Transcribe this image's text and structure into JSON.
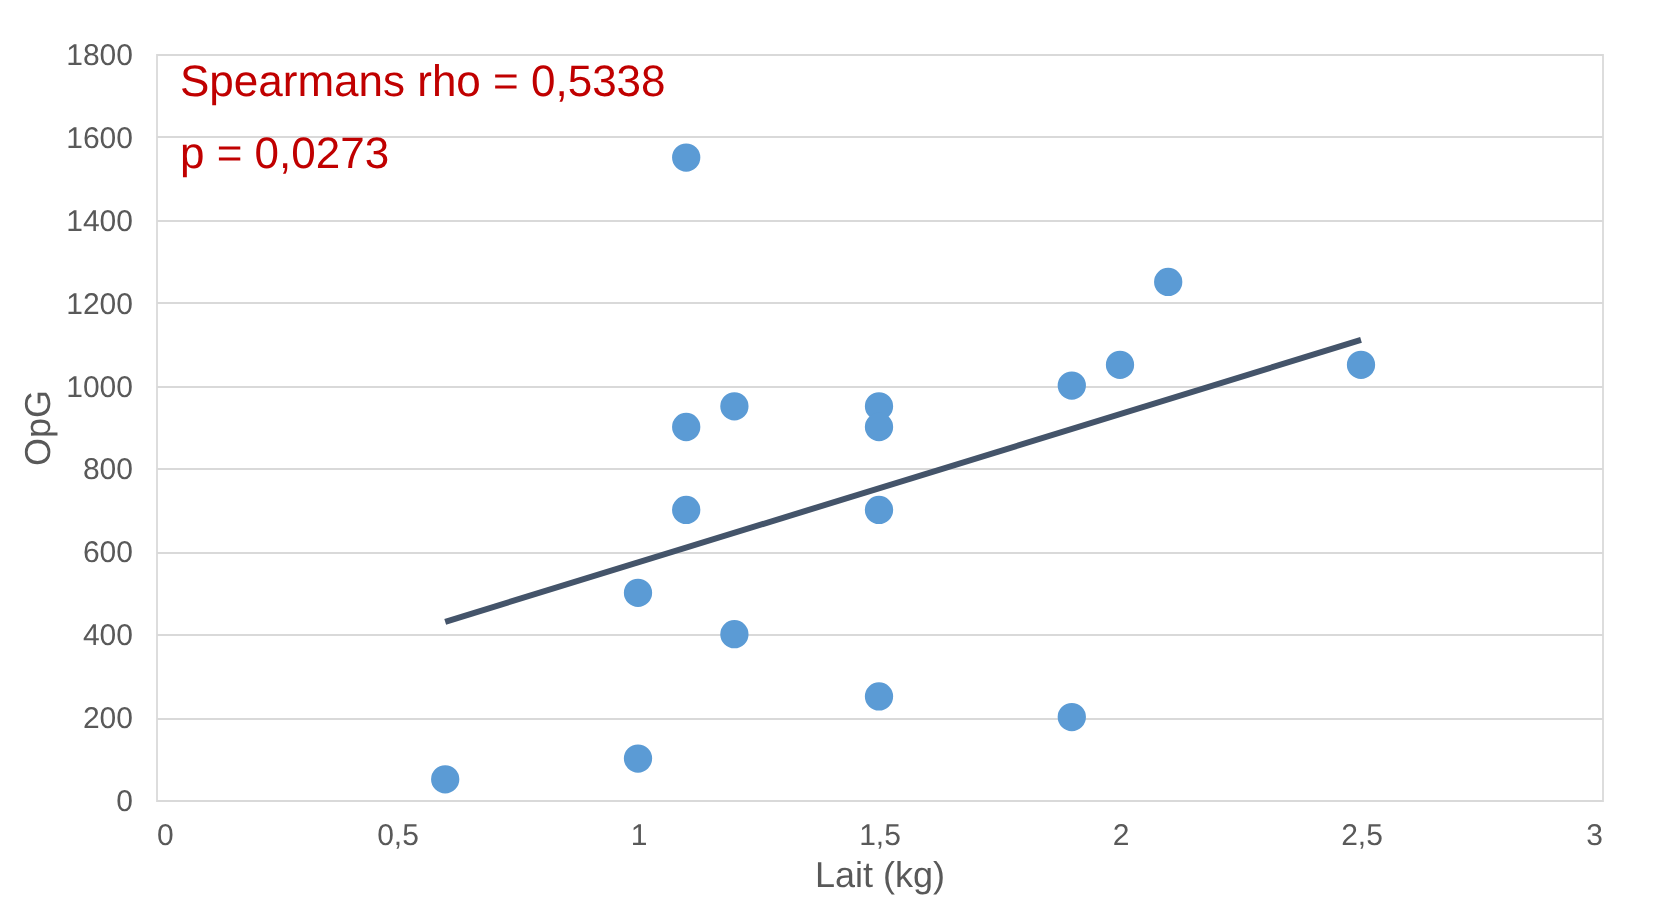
{
  "chart_data": {
    "type": "scatter",
    "xlabel": "Lait (kg)",
    "ylabel": "OpG",
    "annotations": [
      "Spearmans rho = 0,5338",
      "p = 0,0273"
    ],
    "series": [
      {
        "color": "#5b9bd5",
        "marker": "circle",
        "x": [
          0.6,
          1.0,
          1.0,
          1.1,
          1.1,
          1.1,
          1.2,
          1.2,
          1.5,
          1.5,
          1.5,
          1.5,
          1.9,
          1.9,
          2.0,
          2.1,
          2.5
        ],
        "values": [
          50,
          100,
          500,
          1550,
          900,
          700,
          950,
          400,
          950,
          900,
          700,
          250,
          1000,
          200,
          1050,
          1250,
          1050
        ]
      },
      {
        "type": "line",
        "color": "#44546a",
        "x": [
          0.6,
          2.5
        ],
        "values": [
          430,
          1110
        ]
      }
    ],
    "xlim": [
      0,
      3
    ],
    "xticks": [
      0,
      {
        "value": 0.5,
        "label": "0,5"
      },
      1,
      {
        "value": 1.5,
        "label": "1,5"
      },
      2,
      {
        "value": 2.5,
        "label": "2,5"
      },
      3
    ],
    "ylim": [
      0,
      1800
    ],
    "yticks": [
      0,
      200,
      400,
      600,
      800,
      1000,
      1200,
      1400,
      1600,
      1800
    ],
    "grid": "y"
  }
}
